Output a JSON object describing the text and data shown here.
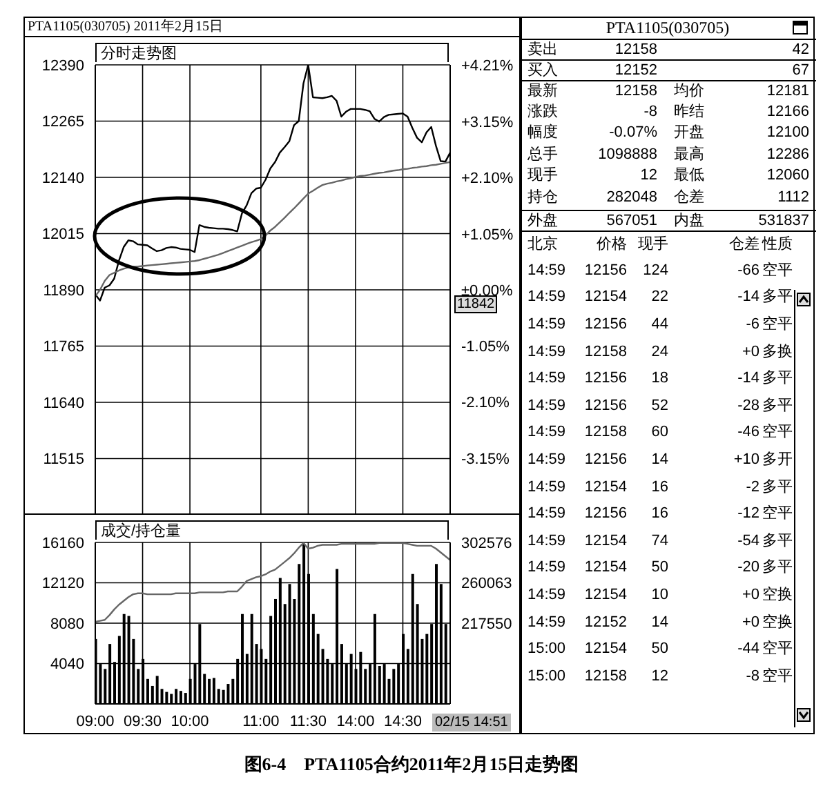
{
  "chart_data": [
    {
      "type": "line",
      "title": "PTA1105(030705) 2011年2月15日",
      "subtitle": "分时走势图",
      "categories": [
        null,
        null,
        null,
        null,
        null,
        null,
        null,
        null,
        null,
        null,
        null,
        null,
        null,
        null,
        null,
        null,
        null,
        null,
        null,
        null,
        null,
        null,
        null,
        null,
        null,
        null,
        null,
        null,
        null,
        null,
        null,
        null,
        null,
        null,
        null,
        null,
        null,
        null,
        null,
        null,
        null,
        null,
        null,
        null,
        null,
        null,
        null,
        null,
        null,
        null,
        null,
        null,
        null,
        null,
        null,
        null,
        null,
        null,
        null,
        null,
        null,
        null,
        null,
        null,
        null,
        null,
        null,
        null,
        null,
        null,
        null,
        null,
        null,
        null,
        null,
        null
      ],
      "ylim": [
        11390,
        12390
      ],
      "yticks": [
        11515,
        11640,
        11765,
        11890,
        12015,
        12140,
        12265,
        12390
      ],
      "y2lim": [
        -4.21,
        4.21
      ],
      "y2ticks": [
        {
          "value": 4.21,
          "label": "+4.21%"
        },
        {
          "value": 3.15,
          "label": "+3.15%"
        },
        {
          "value": 2.1,
          "label": "+2.10%"
        },
        {
          "value": 1.05,
          "label": "+1.05%"
        },
        {
          "value": 0,
          "label": "±0.00%"
        },
        {
          "value": -1.05,
          "label": "-1.05%"
        },
        {
          "value": -2.1,
          "label": "-2.10%"
        },
        {
          "value": -3.15,
          "label": "-3.15%"
        }
      ],
      "grid": true,
      "tick_labels": "y",
      "annotations": [
        "11842",
        "图6-4　PTA1105合约2011年2月15日走势图"
      ],
      "series": [
        {
          "type": "line",
          "color": "#000000",
          "values": [
            11880,
            11866,
            11895,
            11900,
            11915,
            11955,
            11985,
            12000,
            11998,
            11991,
            11990,
            11989,
            11982,
            11976,
            11978,
            11983,
            11985,
            11984,
            11981,
            11980,
            11979,
            11974,
            12034,
            12030,
            12028,
            12027,
            12026,
            12026,
            12025,
            12023,
            12020,
            12060,
            12078,
            12105,
            12115,
            12117,
            12135,
            12160,
            12174,
            12195,
            12207,
            12220,
            12256,
            12265,
            12349,
            12390,
            12318,
            12317,
            12316,
            12318,
            12321,
            12310,
            12275,
            12286,
            12292,
            12292,
            12292,
            12290,
            12287,
            12270,
            12264,
            12274,
            12279,
            12280,
            12281,
            12282,
            12275,
            12250,
            12228,
            12218,
            12240,
            12252,
            12210,
            12176,
            12175,
            12195
          ]
        },
        {
          "type": "line",
          "color": "#666666",
          "values": [
            11876,
            11890,
            11910,
            11923,
            11928,
            11933,
            11937,
            11940,
            11941,
            11942,
            11943,
            11944,
            11945,
            11946,
            11947,
            11948,
            11949,
            11950,
            11951,
            11952,
            11953,
            11954,
            11956,
            11959,
            11962,
            11965,
            11968,
            11972,
            11976,
            11980,
            11984,
            11988,
            11992,
            11996,
            11999,
            12003,
            12011,
            12022,
            12030,
            12040,
            12050,
            12061,
            12071,
            12082,
            12093,
            12104,
            12110,
            12117,
            12123,
            12126,
            12128,
            12131,
            12133,
            12136,
            12138,
            12141,
            12143,
            12144,
            12146,
            12148,
            12150,
            12151,
            12153,
            12155,
            12156,
            12158,
            12159,
            12161,
            12162,
            12164,
            12165,
            12167,
            12168,
            12170,
            12172,
            12174
          ]
        }
      ]
    },
    {
      "type": "bar",
      "subtitle": "成交/持仓量",
      "categories": [
        "09:00",
        null,
        null,
        null,
        null,
        null,
        null,
        null,
        null,
        null,
        "09:30",
        null,
        null,
        null,
        null,
        null,
        null,
        null,
        null,
        null,
        "10:00",
        null,
        null,
        null,
        null,
        null,
        null,
        null,
        null,
        null,
        null,
        null,
        null,
        null,
        null,
        "11:00",
        null,
        null,
        null,
        null,
        null,
        null,
        null,
        null,
        null,
        "11:30",
        null,
        null,
        null,
        null,
        null,
        null,
        null,
        null,
        null,
        "14:00",
        null,
        null,
        null,
        null,
        null,
        null,
        null,
        null,
        null,
        "14:30",
        null,
        null,
        null,
        null,
        null,
        null,
        null,
        null,
        null,
        null
      ],
      "ylim": [
        0,
        16160
      ],
      "yticks": [
        4040,
        8080,
        12120,
        16160
      ],
      "y2lim": [
        132524,
        302576
      ],
      "y2ticks": [
        217550,
        260063,
        302576
      ],
      "grid": true,
      "annotations": [
        "02/15 14:51"
      ],
      "series": [
        {
          "type": "bar",
          "color": "#000000",
          "values": [
            6500,
            4000,
            3500,
            6000,
            4200,
            6800,
            9000,
            8800,
            6500,
            3500,
            4500,
            2500,
            1800,
            2800,
            1500,
            1200,
            1000,
            1500,
            1300,
            1100,
            2500,
            4000,
            8000,
            3000,
            2500,
            2600,
            1500,
            1400,
            2000,
            2500,
            4500,
            9000,
            5000,
            9000,
            6000,
            5500,
            4500,
            8800,
            10500,
            12600,
            10000,
            12000,
            10500,
            14000,
            16000,
            13000,
            9000,
            7000,
            5500,
            4500,
            4000,
            13500,
            6000,
            4000,
            5000,
            3500,
            5200,
            3500,
            4000,
            9000,
            3800,
            4000,
            2500,
            3500,
            4000,
            7000,
            5500,
            13000,
            10000,
            6500,
            7000,
            8000,
            14000,
            12000,
            8000,
            null
          ]
        },
        {
          "type": "line",
          "axis": "y2",
          "color": "#666666",
          "values": [
            219000,
            220000,
            221000,
            226000,
            232000,
            237000,
            241000,
            245000,
            248000,
            249000,
            249000,
            248000,
            248000,
            248000,
            248000,
            248000,
            248000,
            249000,
            249000,
            249000,
            249000,
            249000,
            250000,
            250000,
            250000,
            250000,
            250000,
            250000,
            251000,
            251000,
            251000,
            256000,
            262000,
            264000,
            266000,
            267000,
            269000,
            272000,
            274000,
            278000,
            282000,
            286000,
            291000,
            297000,
            302000,
            296000,
            297000,
            299000,
            300000,
            300000,
            300000,
            300000,
            301000,
            301000,
            301000,
            301000,
            301000,
            301000,
            301000,
            301000,
            302000,
            302000,
            302000,
            302000,
            302000,
            302000,
            301000,
            300000,
            299000,
            299000,
            299000,
            299000,
            296000,
            292000,
            288000,
            284000
          ]
        }
      ]
    },
    {
      "type": "other",
      "title": "PTA1105(030705)",
      "annotations": [
        "卖出",
        "12158",
        "42",
        "买入",
        "12152",
        "67",
        "最新",
        "12158",
        "均价",
        "12181",
        "涨跌",
        "-8",
        "昨结",
        "12166",
        "幅度",
        "-0.07%",
        "开盘",
        "12100",
        "总手",
        "1098888",
        "最高",
        "12286",
        "现手",
        "12",
        "最低",
        "12060",
        "持仓",
        "282048",
        "仓差",
        "1112",
        "外盘",
        "567051",
        "内盘",
        "531837",
        "北京",
        "价格",
        "现手",
        "仓差",
        "性质",
        "14:59",
        "12156",
        "124",
        "-66",
        "空平",
        "14:59",
        "12154",
        "22",
        "-14",
        "多平",
        "14:59",
        "12156",
        "44",
        "-6",
        "空平",
        "14:59",
        "12158",
        "24",
        "+0",
        "多换",
        "14:59",
        "12156",
        "18",
        "-14",
        "多平",
        "14:59",
        "12156",
        "52",
        "-28",
        "多平",
        "14:59",
        "12158",
        "60",
        "-46",
        "空平",
        "14:59",
        "12156",
        "14",
        "+10",
        "多开",
        "14:59",
        "12154",
        "16",
        "-2",
        "多平",
        "14:59",
        "12156",
        "16",
        "-12",
        "空平",
        "14:59",
        "12154",
        "74",
        "-54",
        "多平",
        "14:59",
        "12154",
        "50",
        "-20",
        "多平",
        "14:59",
        "12154",
        "10",
        "+0",
        "空换",
        "14:59",
        "12152",
        "14",
        "+0",
        "空换",
        "15:00",
        "12154",
        "50",
        "-44",
        "空平",
        "15:00",
        "12158",
        "12",
        "-8",
        "空平"
      ]
    }
  ]
}
